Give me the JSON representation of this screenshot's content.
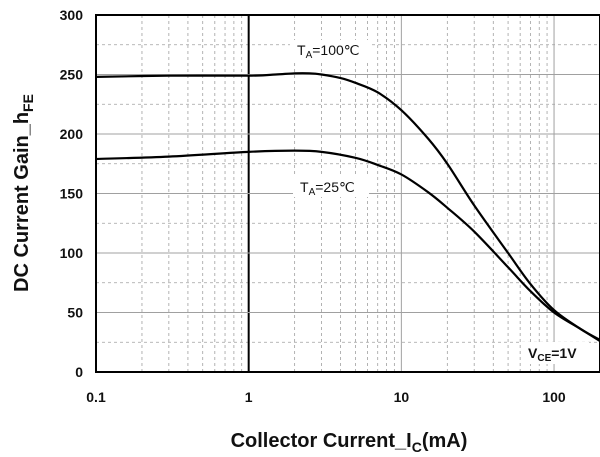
{
  "chart_data": {
    "type": "line",
    "xlabel": {
      "main": "Collector Current_I",
      "sub": "C",
      "unit": "(mA)"
    },
    "ylabel": {
      "main": "DC Current Gain_h",
      "sub": "FE"
    },
    "x_scale": "log",
    "xlim": [
      0.1,
      200
    ],
    "ylim": [
      0,
      300
    ],
    "x_ticks": [
      0.1,
      1,
      10,
      100
    ],
    "x_tick_labels": [
      "0.1",
      "1",
      "10",
      "100"
    ],
    "y_ticks": [
      0,
      50,
      100,
      150,
      200,
      250,
      300
    ],
    "y_tick_labels": [
      "0",
      "50",
      "100",
      "150",
      "200",
      "250",
      "300"
    ],
    "grid": true,
    "line_color": "#000000",
    "grid_color": "#a0a0a0",
    "series": [
      {
        "name": "TA=100°C",
        "label_main": "T",
        "label_sub": "A",
        "label_rest": "=100℃",
        "x": [
          0.1,
          0.3,
          1,
          1.5,
          2,
          2.5,
          3,
          4,
          5,
          7,
          10,
          15,
          20,
          30,
          50,
          70,
          100,
          150,
          200
        ],
        "y": [
          248,
          249,
          249,
          250,
          251,
          251,
          250,
          247,
          243,
          235,
          220,
          196,
          175,
          140,
          100,
          74,
          52,
          36,
          27
        ]
      },
      {
        "name": "TA=25°C",
        "label_main": "T",
        "label_sub": "A",
        "label_rest": "=25℃",
        "x": [
          0.1,
          0.3,
          1,
          2,
          3,
          5,
          7,
          10,
          15,
          20,
          30,
          50,
          70,
          100,
          150,
          200
        ],
        "y": [
          179,
          181,
          185,
          186,
          185,
          180,
          174,
          166,
          151,
          138,
          118,
          88,
          68,
          50,
          36,
          26
        ]
      }
    ],
    "condition": {
      "main": "V",
      "sub": "CE",
      "rest": "=1V"
    }
  }
}
